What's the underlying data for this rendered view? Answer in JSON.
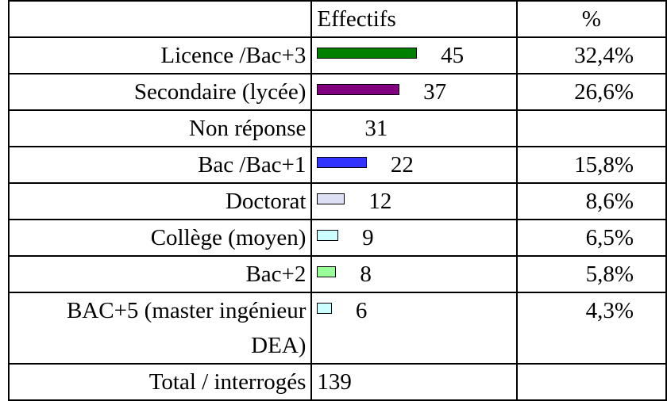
{
  "table": {
    "headers": [
      "",
      "Effectifs",
      "%"
    ],
    "rows": [
      {
        "label": "Licence  /Bac+3",
        "count": 45,
        "percent": "32,4%",
        "color": "#008000"
      },
      {
        "label": "Secondaire (lycée)",
        "count": 37,
        "percent": "26,6%",
        "color": "#800080"
      },
      {
        "label": "Non réponse",
        "count": 31
      },
      {
        "label": "Bac /Bac+1",
        "count": 22,
        "percent": "15,8%",
        "color": "#3333ff"
      },
      {
        "label": "Doctorat",
        "count": 12,
        "percent": "8,6%",
        "color": "#dde0f5"
      },
      {
        "label": "Collège (moyen)",
        "count": 9,
        "percent": "6,5%",
        "color": "#ccffff"
      },
      {
        "label": "Bac+2",
        "count": 8,
        "percent": "5,8%",
        "color": "#99ff99"
      },
      {
        "label": "BAC+5 (master ingénieur DEA)",
        "count": 6,
        "percent": "4,3%",
        "color": "#ccffff"
      }
    ],
    "total": {
      "label": "Total / interrogés",
      "count": 139
    }
  }
}
